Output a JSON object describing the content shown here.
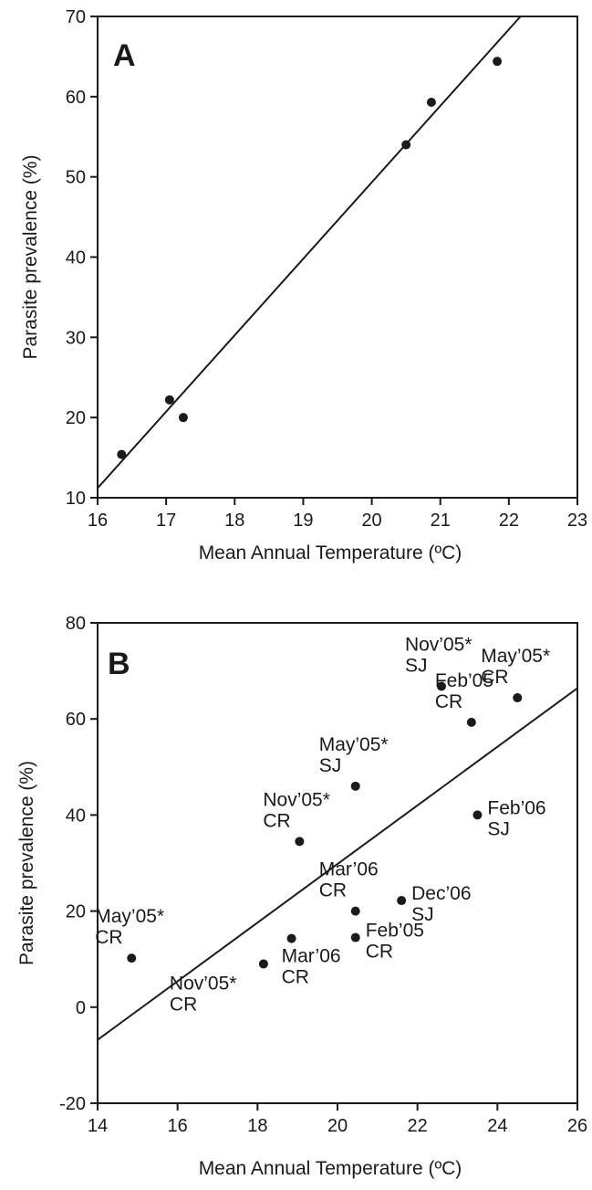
{
  "chart_data": [
    {
      "type": "scatter",
      "panel_label": "A",
      "xlabel": "Mean Annual Temperature (ºC)",
      "ylabel": "Parasite prevalence (%)",
      "xlim": [
        16,
        23
      ],
      "ylim": [
        10,
        70
      ],
      "xticks": [
        "16",
        "17",
        "18",
        "19",
        "20",
        "21",
        "22",
        "23"
      ],
      "yticks": [
        "10",
        "20",
        "30",
        "40",
        "50",
        "60",
        "70"
      ],
      "grid": false,
      "colors": {
        "ink": "#1a1a1a"
      },
      "points": [
        {
          "x": 16.35,
          "y": 15.4
        },
        {
          "x": 17.05,
          "y": 22.2
        },
        {
          "x": 17.25,
          "y": 20.0
        },
        {
          "x": 20.5,
          "y": 54.0
        },
        {
          "x": 20.87,
          "y": 59.3
        },
        {
          "x": 21.83,
          "y": 64.4
        }
      ],
      "fit_line": {
        "x": [
          16,
          22.17
        ],
        "y": [
          11.2,
          70
        ]
      }
    },
    {
      "type": "scatter",
      "panel_label": "B",
      "xlabel": "Mean Annual Temperature (ºC)",
      "ylabel": "Parasite prevalence (%)",
      "xlim": [
        14,
        26
      ],
      "ylim": [
        -20,
        80
      ],
      "xticks": [
        "14",
        "16",
        "18",
        "20",
        "22",
        "24",
        "26"
      ],
      "yticks": [
        "-20",
        "0",
        "20",
        "40",
        "60",
        "80"
      ],
      "grid": false,
      "colors": {
        "ink": "#1a1a1a"
      },
      "points": [
        {
          "x": 14.85,
          "y": 10.2,
          "label": [
            "May’05*",
            "CR"
          ],
          "label_pos": "upper-left"
        },
        {
          "x": 18.15,
          "y": 9.0,
          "label": [
            "Nov’05*",
            "CR"
          ],
          "label_pos": "lower-left"
        },
        {
          "x": 18.85,
          "y": 14.3,
          "label": [
            "Mar’06",
            "CR"
          ],
          "label_pos": "lower-right"
        },
        {
          "x": 19.05,
          "y": 34.5,
          "label": [
            "Nov’05*",
            "CR"
          ],
          "label_pos": "upper-left"
        },
        {
          "x": 20.45,
          "y": 46.0,
          "label": [
            "May’05*",
            "SJ"
          ],
          "label_pos": "upper-left"
        },
        {
          "x": 20.45,
          "y": 20.0,
          "label": [
            "Mar’06",
            "CR"
          ],
          "label_pos": "upper-left"
        },
        {
          "x": 20.45,
          "y": 14.5,
          "label": [
            "Feb’05",
            "CR"
          ],
          "label_pos": "right"
        },
        {
          "x": 21.6,
          "y": 22.2,
          "label": [
            "Dec’06",
            "SJ"
          ],
          "label_pos": "right"
        },
        {
          "x": 22.6,
          "y": 66.8,
          "label": [
            "Nov’05*",
            "SJ"
          ],
          "label_pos": "upper-left"
        },
        {
          "x": 23.35,
          "y": 59.3,
          "label": [
            "Feb’05",
            "CR"
          ],
          "label_pos": "upper-left"
        },
        {
          "x": 23.5,
          "y": 40.0,
          "label": [
            "Feb’06",
            "SJ"
          ],
          "label_pos": "right"
        },
        {
          "x": 24.5,
          "y": 64.4,
          "label": [
            "May’05*",
            "CR"
          ],
          "label_pos": "upper-left"
        }
      ],
      "fit_line": {
        "x": [
          14,
          26
        ],
        "y": [
          -6.8,
          66.4
        ]
      }
    }
  ]
}
